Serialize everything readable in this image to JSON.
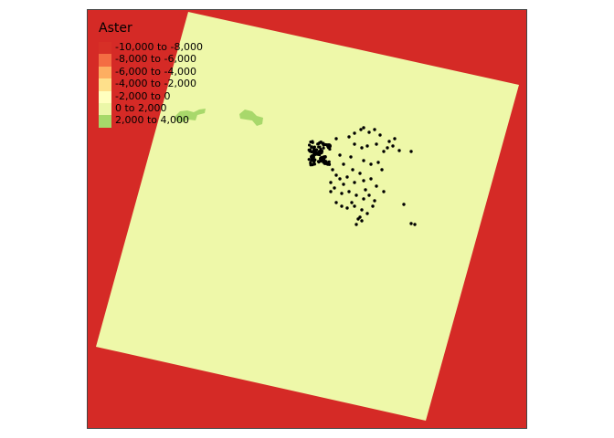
{
  "legend": {
    "title": "Aster",
    "classes": [
      {
        "label": "-10,000 to -8,000",
        "color": "#d73027"
      },
      {
        "label": "-8,000 to -6,000",
        "color": "#f46d43"
      },
      {
        "label": "-6,000 to -4,000",
        "color": "#fdae61"
      },
      {
        "label": "-4,000 to -2,000",
        "color": "#fee08b"
      },
      {
        "label": "-2,000 to 0",
        "color": "#ffffbf"
      },
      {
        "label": "0 to 2,000",
        "color": "#ebf7a8"
      },
      {
        "label": "2,000 to 4,000",
        "color": "#a6d96a"
      }
    ]
  },
  "map": {
    "nodata_color": "#d52a26",
    "raster_color": "#eef8a9",
    "frame_color": "#444444",
    "point_color": "#000000",
    "green_patch_color": "#a8d86b"
  }
}
